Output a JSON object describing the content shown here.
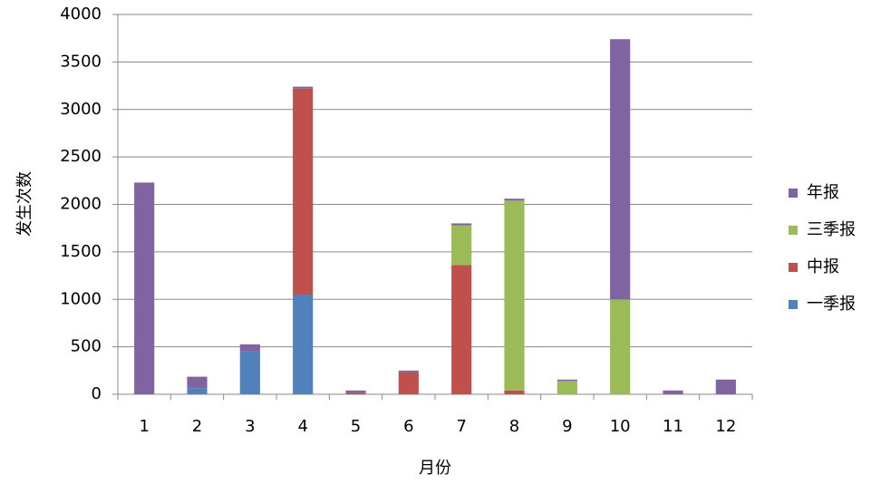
{
  "chart_data": {
    "type": "stacked_bar",
    "x_label": "月份",
    "y_label": "发生次数",
    "categories": [
      "1",
      "2",
      "3",
      "4",
      "5",
      "6",
      "7",
      "8",
      "9",
      "10",
      "11",
      "12"
    ],
    "series": [
      {
        "name": "一季报",
        "color": "#4f81bd",
        "values": [
          0,
          65,
          450,
          1050,
          0,
          0,
          0,
          0,
          0,
          0,
          0,
          0
        ]
      },
      {
        "name": "中报",
        "color": "#c0504d",
        "values": [
          0,
          0,
          0,
          2170,
          15,
          230,
          1360,
          40,
          0,
          0,
          0,
          0
        ]
      },
      {
        "name": "三季报",
        "color": "#9bbb59",
        "values": [
          0,
          0,
          0,
          0,
          0,
          0,
          420,
          2000,
          140,
          1000,
          0,
          0
        ]
      },
      {
        "name": "年报",
        "color": "#8064a2",
        "values": [
          2230,
          120,
          75,
          20,
          25,
          20,
          20,
          20,
          15,
          2740,
          40,
          155
        ]
      }
    ],
    "ylim": [
      0,
      4000
    ],
    "yticks": [
      0,
      500,
      1000,
      1500,
      2000,
      2500,
      3000,
      3500,
      4000
    ],
    "grid": true,
    "legend": "right"
  }
}
